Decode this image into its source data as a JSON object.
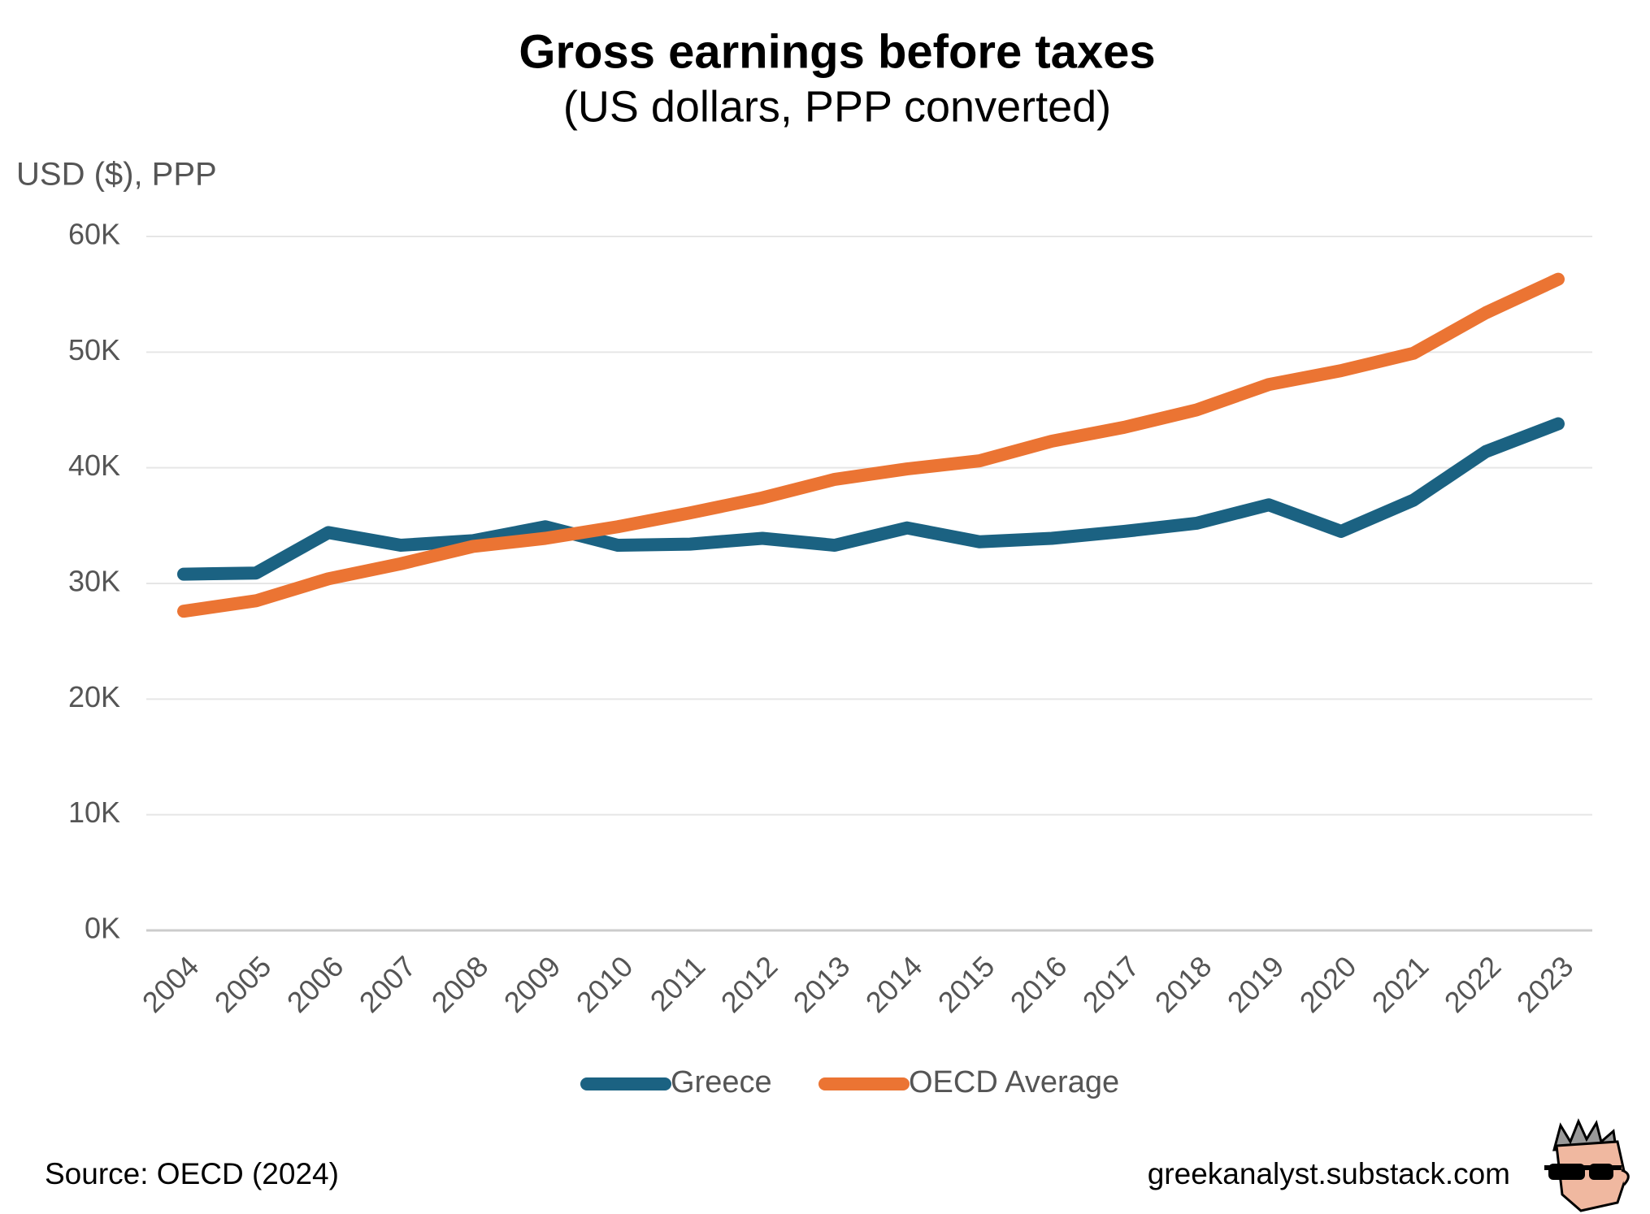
{
  "chart_data": {
    "type": "line",
    "title": "Gross earnings before taxes",
    "subtitle": "(US dollars, PPP converted)",
    "y_axis_label": "USD ($), PPP",
    "source": "Source: OECD (2024)",
    "credit": "greekanalyst.substack.com",
    "categories": [
      "2004",
      "2005",
      "2006",
      "2007",
      "2008",
      "2009",
      "2010",
      "2011",
      "2012",
      "2013",
      "2014",
      "2015",
      "2016",
      "2017",
      "2018",
      "2019",
      "2020",
      "2021",
      "2022",
      "2023"
    ],
    "series": [
      {
        "name": "Greece",
        "color": "#1b6282",
        "values": [
          30.8,
          30.9,
          34.4,
          33.3,
          33.7,
          34.9,
          33.3,
          33.4,
          33.9,
          33.3,
          34.8,
          33.6,
          33.9,
          34.5,
          35.2,
          36.8,
          34.5,
          37.2,
          41.4,
          43.8
        ]
      },
      {
        "name": "OECD Average",
        "color": "#eb7433",
        "values": [
          27.6,
          28.5,
          30.4,
          31.7,
          33.2,
          33.9,
          34.9,
          36.1,
          37.4,
          39.0,
          39.9,
          40.6,
          42.3,
          43.5,
          45.0,
          47.2,
          48.4,
          49.9,
          53.4,
          56.3
        ]
      }
    ],
    "ylim": [
      0,
      60
    ],
    "yticks": [
      {
        "value": 0,
        "label": "0K"
      },
      {
        "value": 10,
        "label": "10K"
      },
      {
        "value": 20,
        "label": "20K"
      },
      {
        "value": 30,
        "label": "30K"
      },
      {
        "value": 40,
        "label": "40K"
      },
      {
        "value": 50,
        "label": "50K"
      },
      {
        "value": 60,
        "label": "60K"
      }
    ],
    "grid": true,
    "legend": "bottom"
  }
}
